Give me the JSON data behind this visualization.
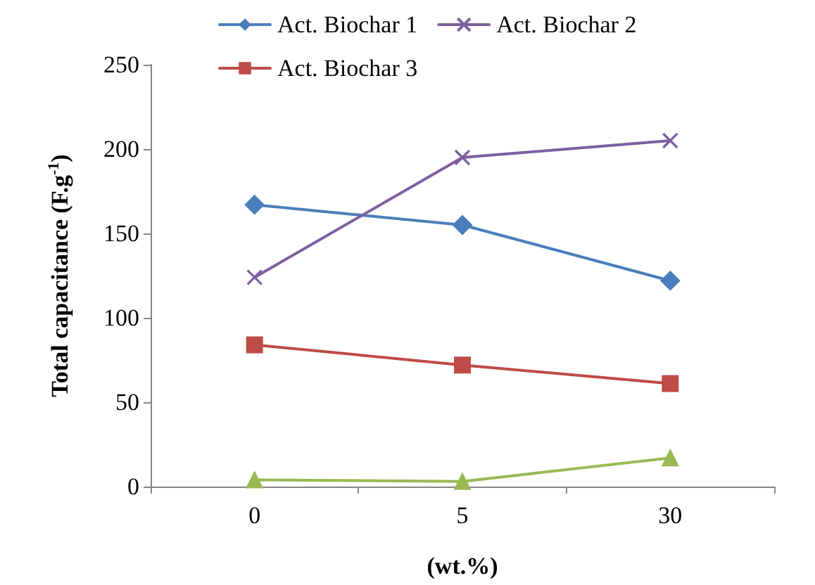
{
  "chart_data": {
    "type": "line",
    "xlabel": "(wt.%)",
    "ylabel": "Total capacitance (F.g$^{-1}$)",
    "categories": [
      "0",
      "5",
      "30"
    ],
    "series": [
      {
        "name": "Act. Biochar 1",
        "color": "#4a7ebb",
        "marker": "diamond",
        "values": [
          167,
          155,
          122
        ]
      },
      {
        "name": "Act. Biochar 2",
        "color": "#7d5fa0",
        "marker": "cross",
        "values": [
          124,
          195,
          205
        ]
      },
      {
        "name": "Act. Biochar 3",
        "color": "#be4b48",
        "marker": "square",
        "values": [
          84,
          72,
          61
        ]
      },
      {
        "color": "#98b954",
        "marker": "triangle",
        "values": [
          4,
          3,
          17
        ]
      }
    ],
    "ylim": [
      0,
      250
    ],
    "yticks": [
      0,
      50,
      100,
      150,
      200,
      250
    ],
    "grid": false,
    "legend": "top",
    "line_style": "solid"
  }
}
